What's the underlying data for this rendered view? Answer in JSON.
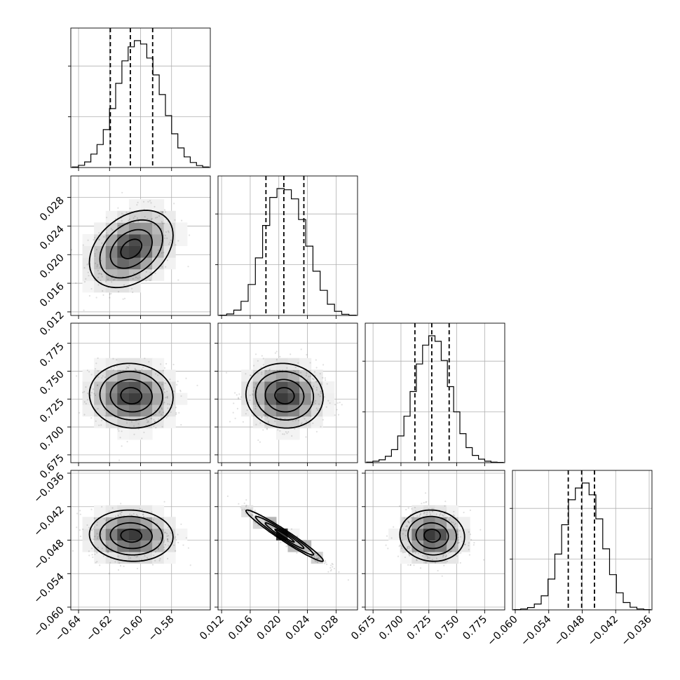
{
  "chart_data": {
    "type": "scatter",
    "subtype": "corner-plot",
    "parameters": [
      {
        "axis_range": [
          -0.645,
          -0.555
        ],
        "mean": -0.606,
        "sd": 0.0135,
        "quantiles": [
          -0.6195,
          -0.6066,
          -0.5922
        ],
        "ticks": [
          -0.64,
          -0.62,
          -0.6,
          -0.58
        ],
        "tick_labels": [
          "−0.64",
          "−0.62",
          "−0.60",
          "−0.58"
        ],
        "hist_counts": [
          2,
          8,
          20,
          48,
          82,
          135,
          210,
          300,
          380,
          430,
          452,
          440,
          390,
          330,
          260,
          185,
          120,
          70,
          38,
          18,
          7,
          2
        ]
      },
      {
        "axis_range": [
          0.0115,
          0.031
        ],
        "mean": 0.0208,
        "sd": 0.0027,
        "quantiles": [
          0.0182,
          0.0207,
          0.0235
        ],
        "ticks": [
          0.012,
          0.016,
          0.02,
          0.024,
          0.028
        ],
        "tick_labels": [
          "0.012",
          "0.016",
          "0.020",
          "0.024",
          "0.028"
        ],
        "hist_counts": [
          1,
          5,
          18,
          48,
          105,
          195,
          305,
          400,
          430,
          426,
          395,
          325,
          235,
          150,
          85,
          38,
          14,
          4,
          1
        ]
      },
      {
        "axis_range": [
          0.668,
          0.793
        ],
        "mean": 0.728,
        "sd": 0.0145,
        "quantiles": [
          0.7125,
          0.7276,
          0.7432
        ],
        "ticks": [
          0.675,
          0.7,
          0.725,
          0.75,
          0.775
        ],
        "tick_labels": [
          "0.675",
          "0.700",
          "0.725",
          "0.750",
          "0.775"
        ],
        "hist_counts": [
          2,
          5,
          10,
          22,
          45,
          92,
          160,
          245,
          340,
          405,
          437,
          418,
          352,
          262,
          175,
          100,
          52,
          25,
          12,
          5,
          2,
          1
        ]
      },
      {
        "axis_range": [
          -0.0605,
          -0.0355
        ],
        "mean": -0.0472,
        "sd": 0.0023,
        "quantiles": [
          -0.0505,
          -0.0481,
          -0.0458
        ],
        "ticks": [
          -0.06,
          -0.054,
          -0.048,
          -0.042,
          -0.036
        ],
        "tick_labels": [
          "−0.060",
          "−0.054",
          "−0.048",
          "−0.042",
          "−0.036"
        ],
        "hist_counts": [
          1,
          3,
          8,
          20,
          48,
          105,
          190,
          290,
          375,
          415,
          432,
          392,
          310,
          208,
          120,
          58,
          25,
          9,
          3,
          1
        ]
      }
    ],
    "correlations": [
      [
        1,
        0.35,
        -0.05,
        -0.05
      ],
      [
        0.35,
        1,
        -0.05,
        -0.97
      ],
      [
        -0.05,
        -0.05,
        1,
        -0.05
      ],
      [
        -0.05,
        -0.97,
        -0.05,
        1
      ]
    ],
    "contour_levels_sigma": [
      0.5,
      1.0,
      1.5,
      2.0
    ],
    "grid": true,
    "title": "",
    "xlabel": "",
    "ylabel": ""
  }
}
